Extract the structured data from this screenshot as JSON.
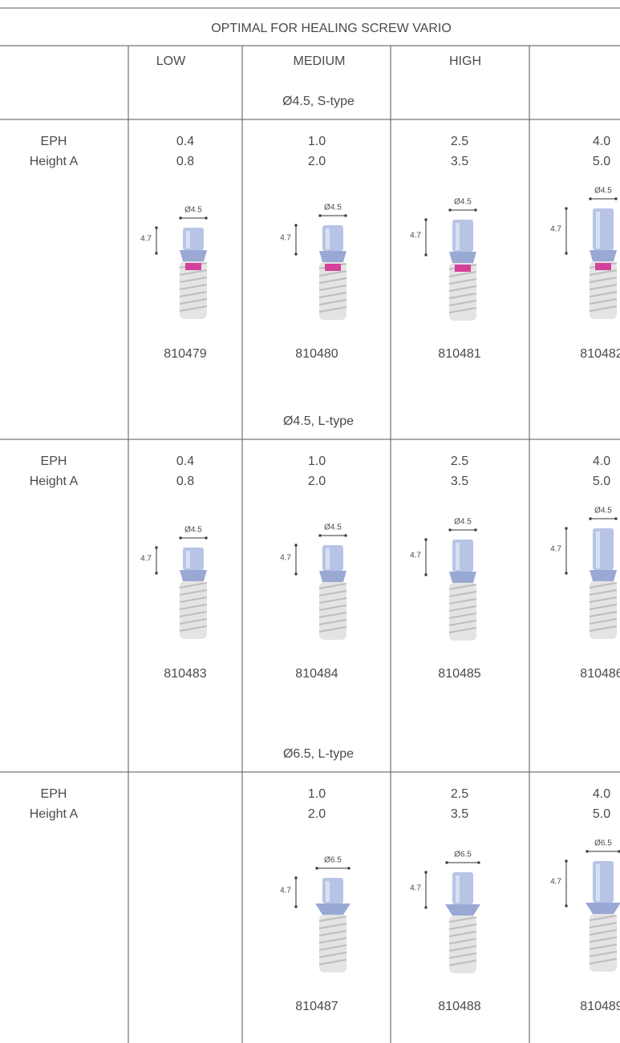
{
  "header": {
    "title": "OPTIMAL FOR HEALING SCREW VARIO",
    "columns": [
      "LOW",
      "MEDIUM",
      "HIGH"
    ]
  },
  "sections": [
    {
      "label": "Ø4.5, S-type",
      "row_label": [
        "EPH",
        "Height A"
      ],
      "cells": [
        {
          "values": [
            "0.4",
            "0.8"
          ],
          "diameter": "Ø4.5",
          "height": "4.7",
          "code": "810479"
        },
        {
          "values": [
            "1.0",
            "2.0"
          ],
          "diameter": "Ø4.5",
          "height": "4.7",
          "code": "810480"
        },
        {
          "values": [
            "2.5",
            "3.5"
          ],
          "diameter": "Ø4.5",
          "height": "4.7",
          "code": "810481"
        },
        {
          "values": [
            "4.0",
            "5.0"
          ],
          "diameter": "Ø4.5",
          "height": "4.7",
          "code": "810482"
        }
      ]
    },
    {
      "label": "Ø4.5, L-type",
      "row_label": [
        "EPH",
        "Height A"
      ],
      "cells": [
        {
          "values": [
            "0.4",
            "0.8"
          ],
          "diameter": "Ø4.5",
          "height": "4.7",
          "code": "810483"
        },
        {
          "values": [
            "1.0",
            "2.0"
          ],
          "diameter": "Ø4.5",
          "height": "4.7",
          "code": "810484"
        },
        {
          "values": [
            "2.5",
            "3.5"
          ],
          "diameter": "Ø4.5",
          "height": "4.7",
          "code": "810485"
        },
        {
          "values": [
            "4.0",
            "5.0"
          ],
          "diameter": "Ø4.5",
          "height": "4.7",
          "code": "810486"
        }
      ]
    },
    {
      "label": "Ø6.5, L-type",
      "row_label": [
        "EPH",
        "Height A"
      ],
      "cells": [
        null,
        {
          "values": [
            "1.0",
            "2.0"
          ],
          "diameter": "Ø6.5",
          "height": "4.7",
          "code": "810487"
        },
        {
          "values": [
            "2.5",
            "3.5"
          ],
          "diameter": "Ø6.5",
          "height": "4.7",
          "code": "810488"
        },
        {
          "values": [
            "4.0",
            "5.0"
          ],
          "diameter": "Ø6.5",
          "height": "4.7",
          "code": "810489"
        }
      ]
    }
  ]
}
